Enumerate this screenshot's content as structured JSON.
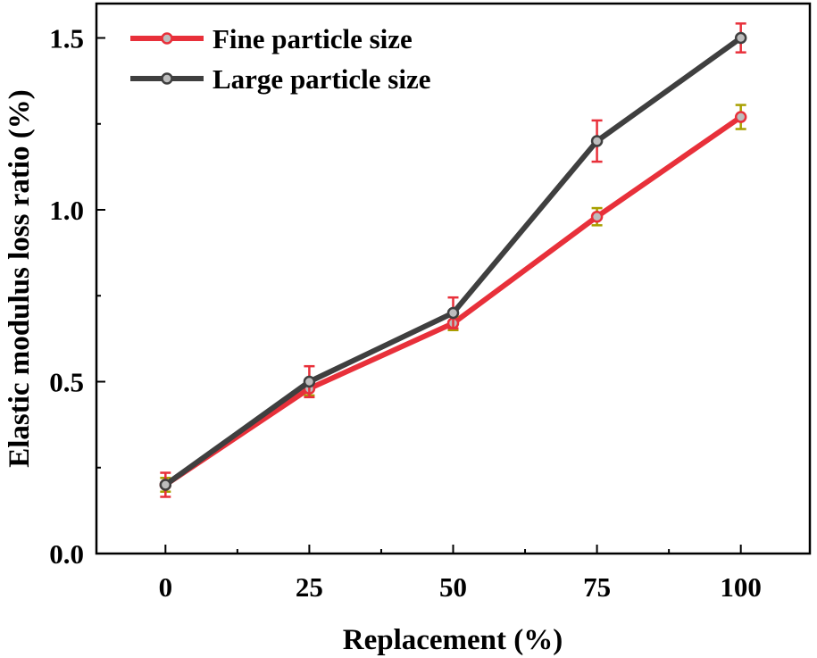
{
  "chart_data": {
    "type": "line",
    "xlabel": "Replacement (%)",
    "ylabel": "Elastic modulus loss ratio (%)",
    "x": [
      0,
      25,
      50,
      75,
      100
    ],
    "x_tick_labels": [
      "0",
      "25",
      "50",
      "75",
      "100"
    ],
    "xlim": [
      -12,
      112
    ],
    "ylim": [
      0.0,
      1.6
    ],
    "y_ticks": [
      0.0,
      0.5,
      1.0,
      1.5
    ],
    "y_tick_labels": [
      "0.0",
      "0.5",
      "1.0",
      "1.5"
    ],
    "grid": false,
    "legend_position": "top-left",
    "series": [
      {
        "name": "Fine particle size",
        "color": "#e8303a",
        "errorbar_color": "#a8a000",
        "values": [
          0.2,
          0.48,
          0.67,
          0.98,
          1.27
        ],
        "errors": [
          0.02,
          0.02,
          0.02,
          0.025,
          0.035
        ]
      },
      {
        "name": "Large particle size",
        "color": "#3f3f3f",
        "errorbar_color": "#e8303a",
        "values": [
          0.2,
          0.5,
          0.7,
          1.2,
          1.5
        ],
        "errors": [
          0.035,
          0.045,
          0.045,
          0.06,
          0.042
        ]
      }
    ]
  }
}
